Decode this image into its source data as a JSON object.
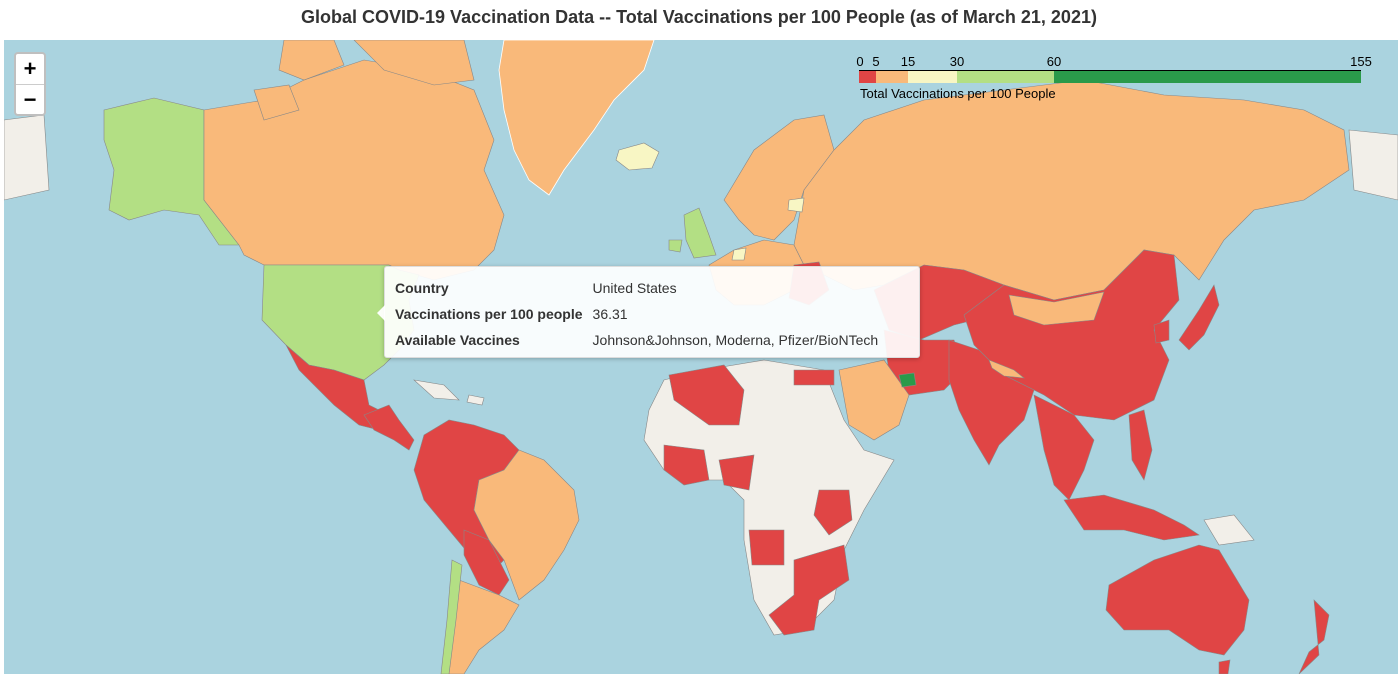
{
  "title": "Global COVID-19 Vaccination Data -- Total Vaccinations per 100 People (as of March 21, 2021)",
  "zoom": {
    "in_label": "+",
    "out_label": "−"
  },
  "legend": {
    "caption": "Total Vaccinations per 100 People",
    "tick_labels": [
      "0",
      "5",
      "15",
      "30",
      "60",
      "155"
    ],
    "ticks": [
      0,
      5,
      15,
      30,
      60,
      155
    ],
    "colors": [
      "#d73027",
      "#fdae61",
      "#fee08b",
      "#d9ef8b",
      "#a6d96a",
      "#1a9850"
    ],
    "max": 155
  },
  "tooltip": {
    "rows": [
      {
        "key": "Country",
        "value": "United States"
      },
      {
        "key": "Vaccinations per 100 people",
        "value": "36.31"
      },
      {
        "key": "Available Vaccines",
        "value": "Johnson&Johnson, Moderna, Pfizer/BioNTech"
      }
    ]
  },
  "colors": {
    "ocean": "#aad3df",
    "land_nodata": "#f2efe9",
    "range_0_5": "#e04545",
    "range_5_15": "#f9b97a",
    "range_15_30": "#f8f6c4",
    "range_30_60": "#b3df84",
    "range_60_155": "#2a9a4a"
  }
}
